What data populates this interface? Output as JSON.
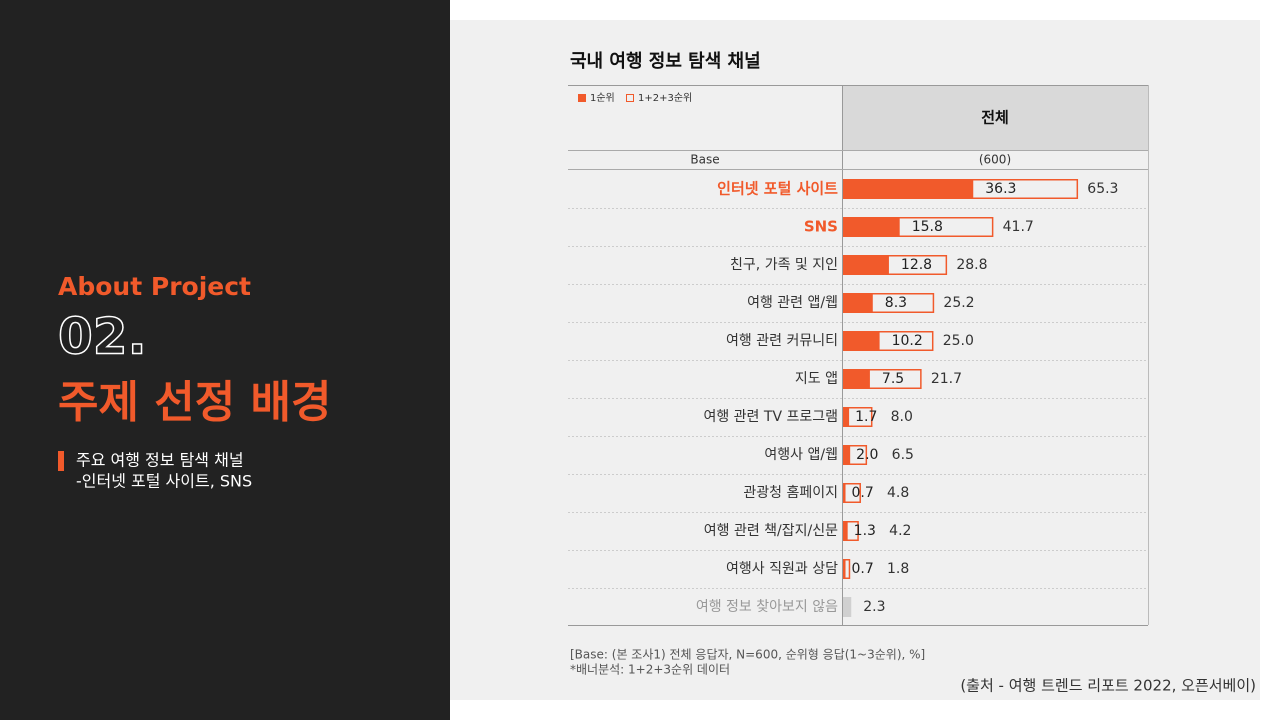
{
  "slide": {
    "eyebrow": "About Project",
    "number": "02.",
    "heading": "주제 선정 배경",
    "bullet_lines": [
      "주요 여행 정보 탐색 채널",
      "-인터넷 포털 사이트, SNS"
    ],
    "source": "(출처 - 여행 트렌드 리포트 2022, 오픈서베이)"
  },
  "chart_data": {
    "type": "bar",
    "orientation": "horizontal",
    "title": "국내 여행 정보 탐색 채널",
    "column_header": "전체",
    "base_label": "Base",
    "base_value": "(600)",
    "categories": [
      "인터넷 포털 사이트",
      "SNS",
      "친구, 가족 및 지인",
      "여행 관련 앱/웹",
      "여행 관련 커뮤니티",
      "지도 앱",
      "여행 관련 TV 프로그램",
      "여행사 앱/웹",
      "관광청 홈페이지",
      "여행 관련 책/잡지/신문",
      "여행사 직원과 상담",
      "여행 정보 찾아보지 않음"
    ],
    "label_colors": [
      "#f15a2b",
      "#f15a2b",
      "#333333",
      "#333333",
      "#333333",
      "#333333",
      "#333333",
      "#333333",
      "#333333",
      "#333333",
      "#333333",
      "#999999"
    ],
    "series": [
      {
        "name": "1순위",
        "color": "#f15a2b",
        "values": [
          36.3,
          15.8,
          12.8,
          8.3,
          10.2,
          7.5,
          1.7,
          2.0,
          0.7,
          1.3,
          0.7,
          null
        ],
        "value_labels": [
          "36.3",
          "15.8",
          "12.8",
          "8.3",
          "10.2",
          "7.5",
          "1.7",
          "2.0",
          "0.7",
          "1.3",
          "0.7",
          null
        ]
      },
      {
        "name": "1+2+3순위",
        "color": "#f15a2b",
        "values": [
          65.3,
          41.7,
          28.8,
          25.2,
          25.0,
          21.7,
          8.0,
          6.5,
          4.8,
          4.2,
          1.8,
          2.3
        ],
        "value_labels": [
          "65.3",
          "41.7",
          "28.8",
          "25.2",
          "25.0",
          "21.7",
          "8.0",
          "6.5",
          "4.8",
          "4.2",
          "1.8",
          "2.3"
        ]
      }
    ],
    "none_color": "#d0d0d0",
    "xlim": [
      0,
      85
    ],
    "notes": [
      "[Base: (본 조사1) 전체 응답자, N=600, 순위형 응답(1~3순위), %]",
      "*배너분석: 1+2+3순위 데이터"
    ]
  }
}
